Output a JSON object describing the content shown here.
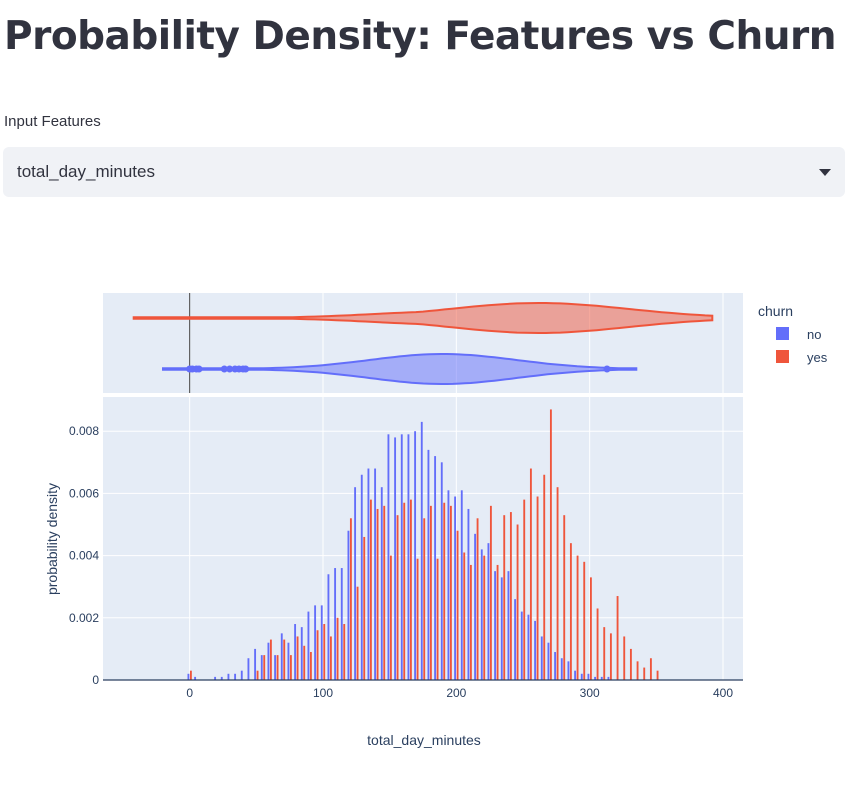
{
  "page": {
    "title": "Probability Density: Features vs Churn"
  },
  "selector": {
    "label": "Input Features",
    "value": "total_day_minutes"
  },
  "chart_data": {
    "type": "bar",
    "subtype": "histogram with marginal violin",
    "xlabel": "total_day_minutes",
    "ylabel": "probability density",
    "xlim": [
      -65,
      415
    ],
    "ylim": [
      0,
      0.0091
    ],
    "xticks": [
      0,
      100,
      200,
      300,
      400
    ],
    "xtick_labels": [
      "0",
      "100",
      "200",
      "300",
      "400"
    ],
    "yticks": [
      0,
      0.002,
      0.004,
      0.006,
      0.008
    ],
    "ytick_labels": [
      "0",
      "0.002",
      "0.004",
      "0.006",
      "0.008"
    ],
    "grid": true,
    "legend": {
      "title": "churn",
      "placement": "right"
    },
    "bin_width": 5,
    "x": [
      0,
      5,
      10,
      15,
      20,
      25,
      30,
      35,
      40,
      45,
      50,
      55,
      60,
      65,
      70,
      75,
      80,
      85,
      90,
      95,
      100,
      105,
      110,
      115,
      120,
      125,
      130,
      135,
      140,
      145,
      150,
      155,
      160,
      165,
      170,
      175,
      180,
      185,
      190,
      195,
      200,
      205,
      210,
      215,
      220,
      225,
      230,
      235,
      240,
      245,
      250,
      255,
      260,
      265,
      270,
      275,
      280,
      285,
      290,
      295,
      300,
      305,
      310,
      315,
      320,
      325,
      330,
      335,
      340,
      345,
      350
    ],
    "series": [
      {
        "name": "no",
        "color": "#636efa",
        "values": [
          0.0002,
          0.0001,
          0,
          0,
          0.0001,
          0.0001,
          0.0002,
          0.0002,
          0.0003,
          0.0007,
          0.001,
          0.0008,
          0.0012,
          0.0008,
          0.0015,
          0.0012,
          0.0018,
          0.0017,
          0.0022,
          0.0024,
          0.0024,
          0.0034,
          0.0036,
          0.0036,
          0.0048,
          0.0062,
          0.0066,
          0.0068,
          0.0068,
          0.0062,
          0.0079,
          0.0078,
          0.0079,
          0.0079,
          0.008,
          0.0083,
          0.0074,
          0.0072,
          0.007,
          0.0061,
          0.0059,
          0.0061,
          0.0055,
          0.0047,
          0.0042,
          0.0044,
          0.0035,
          0.0033,
          0.0035,
          0.0026,
          0.0022,
          0.0021,
          0.0019,
          0.0014,
          0.0012,
          0.0009,
          0.0007,
          0.0006,
          0.0003,
          0.0002,
          0.0002,
          0.0001,
          0.0001,
          0.0001,
          0,
          0,
          0,
          0,
          0,
          0,
          0
        ]
      },
      {
        "name": "yes",
        "color": "#ef553b",
        "values": [
          0.0003,
          0,
          0,
          0,
          0,
          0,
          0,
          0,
          0,
          0,
          0.0003,
          0.0008,
          0.0013,
          0.0008,
          0.0013,
          0.0008,
          0.0014,
          0.0011,
          0.0009,
          0.0016,
          0.0018,
          0.0014,
          0.002,
          0.0018,
          0.0052,
          0.003,
          0.0046,
          0.0058,
          0.0055,
          0.0056,
          0.004,
          0.0053,
          0.0057,
          0.0058,
          0.0039,
          0.0052,
          0.0056,
          0.0039,
          0.0057,
          0.0056,
          0.0048,
          0.0041,
          0.0037,
          0.0052,
          0.004,
          0.0056,
          0.0037,
          0.0053,
          0.0054,
          0.005,
          0.0058,
          0.0068,
          0.0059,
          0.0066,
          0.0087,
          0.0062,
          0.0053,
          0.0044,
          0.004,
          0.0038,
          0.0033,
          0.0023,
          0.0017,
          0.0015,
          0.0027,
          0.0014,
          0.001,
          0.0006,
          0.0004,
          0.0007,
          0.0003
        ]
      }
    ],
    "violin": [
      {
        "name": "no",
        "color": "#636efa",
        "range": [
          -20,
          335
        ],
        "peak": 190,
        "outliers": [
          0,
          2,
          5,
          7,
          26,
          30,
          34,
          37,
          40,
          42,
          313
        ]
      },
      {
        "name": "yes",
        "color": "#ef553b",
        "range": [
          -42,
          392
        ],
        "peak": 262,
        "outliers": []
      }
    ]
  }
}
